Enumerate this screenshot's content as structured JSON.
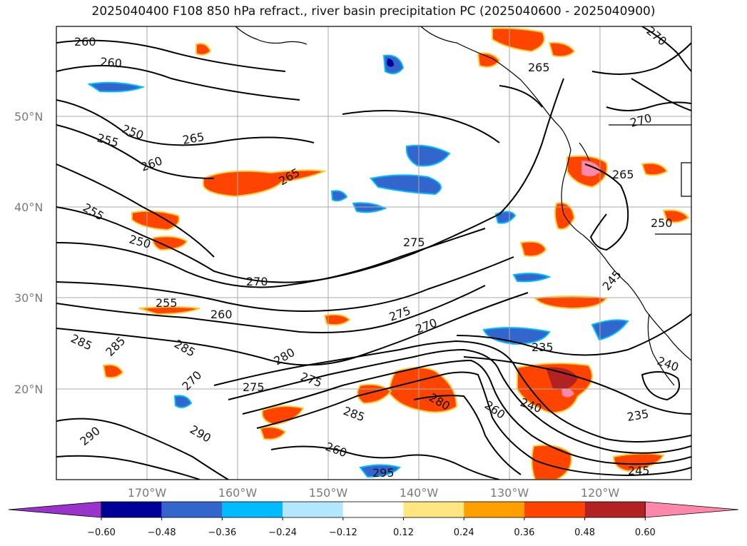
{
  "title": "2025040400 F108 850 hPa refract., river basin precipitation PC (2025040600 - 2025040900)",
  "map": {
    "lat_labels": [
      "50°N",
      "40°N",
      "30°N",
      "20°N"
    ],
    "lon_labels": [
      "170°W",
      "160°W",
      "150°W",
      "140°W",
      "130°W",
      "120°W"
    ],
    "contour_labels": [
      "260",
      "260",
      "255",
      "250",
      "260",
      "265",
      "255",
      "250",
      "265",
      "275",
      "270",
      "255",
      "260",
      "275",
      "270",
      "285",
      "285",
      "285",
      "280",
      "275",
      "275",
      "285",
      "280",
      "270",
      "245",
      "260",
      "240",
      "235",
      "235",
      "240",
      "290",
      "290",
      "295",
      "260",
      "270",
      "265",
      "270",
      "265",
      "245",
      "250"
    ]
  },
  "colorbar": {
    "ticks": [
      "−0.60",
      "−0.48",
      "−0.36",
      "−0.24",
      "−0.12",
      "0.12",
      "0.24",
      "0.36",
      "0.48",
      "0.60"
    ],
    "colors": [
      "#9933cc",
      "#000099",
      "#3366cc",
      "#00bbff",
      "#b3e6ff",
      "#ffffff",
      "#ffe680",
      "#ffa000",
      "#ff4400",
      "#b22222",
      "#ff88aa"
    ]
  }
}
